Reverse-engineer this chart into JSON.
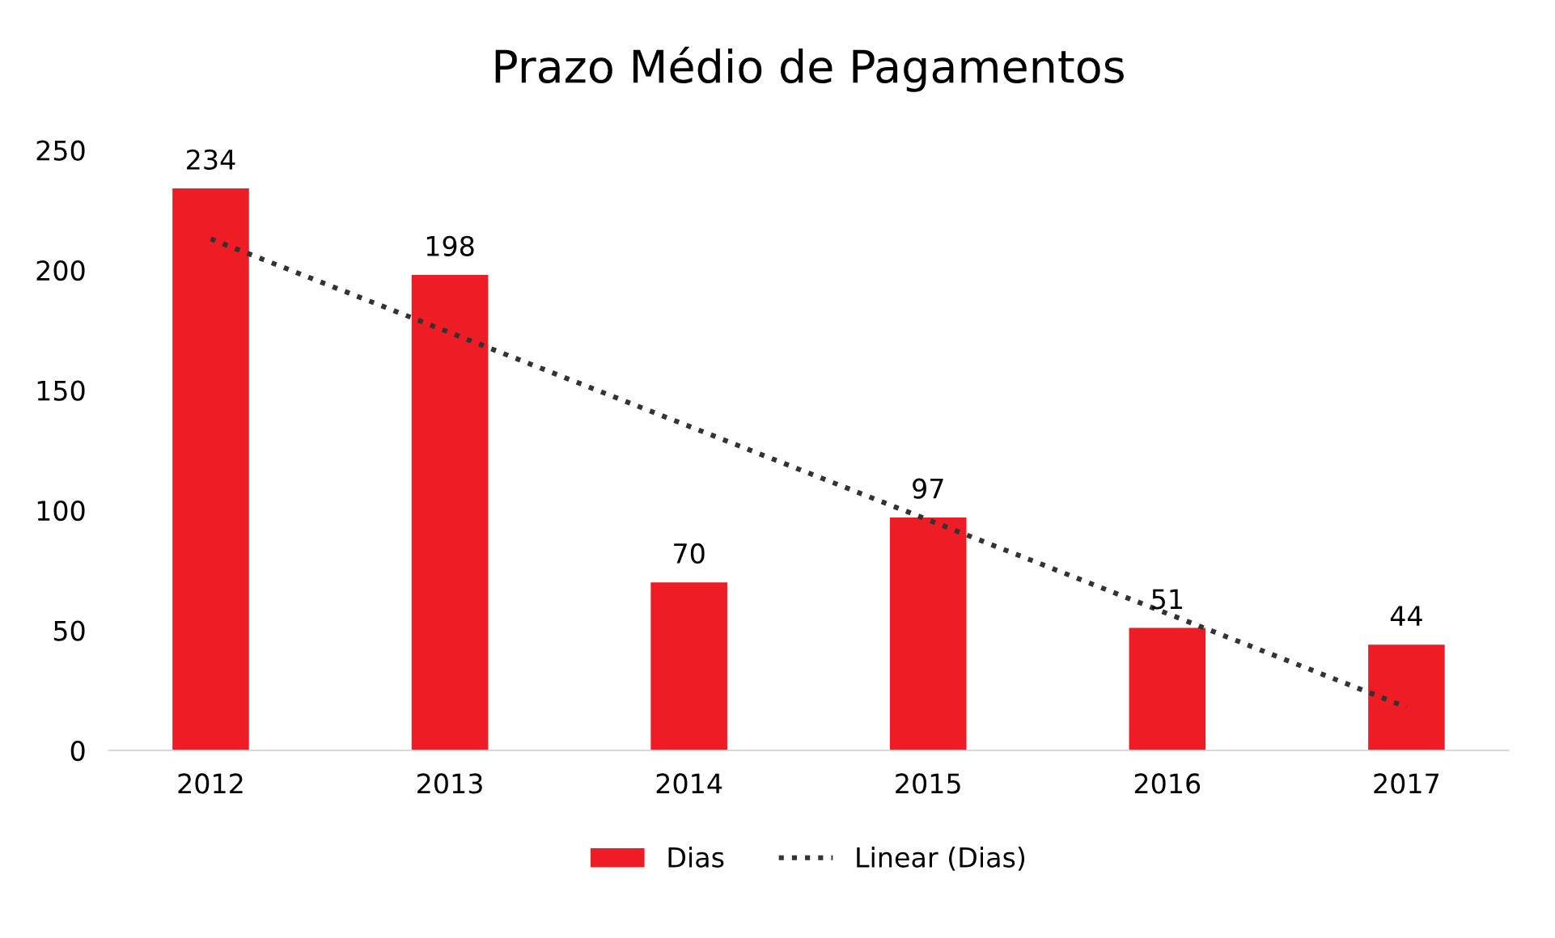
{
  "chart_data": {
    "type": "bar",
    "title": "Prazo Médio de Pagamentos",
    "categories": [
      "2012",
      "2013",
      "2014",
      "2015",
      "2016",
      "2017"
    ],
    "series": [
      {
        "name": "Dias",
        "color": "#ee1c25",
        "values": [
          234,
          198,
          70,
          97,
          51,
          44
        ],
        "value_labels": [
          "234",
          "198",
          "70",
          "97",
          "51",
          "44"
        ]
      },
      {
        "name": "Linear (Dias)",
        "type": "line",
        "color": "#333333",
        "line_style": "dotted",
        "values": [
          213,
          174,
          135,
          96,
          57,
          18
        ]
      }
    ],
    "ylim": [
      0,
      250
    ],
    "yticks": [
      0,
      50,
      100,
      150,
      200,
      250
    ],
    "grid": false,
    "legend": "bottom"
  }
}
